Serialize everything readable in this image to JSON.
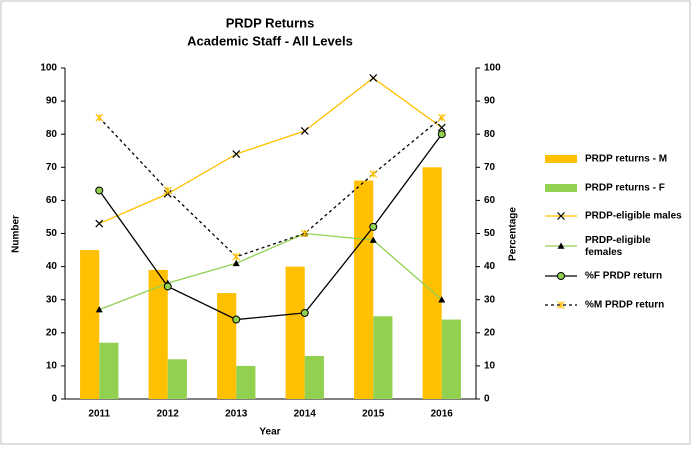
{
  "chart_data": {
    "type": "bar",
    "title": [
      "PRDP Returns",
      "Academic Staff - All Levels"
    ],
    "x_label": "Year",
    "y_label": "Number",
    "y2_label": "Percentage",
    "categories": [
      "2011",
      "2012",
      "2013",
      "2014",
      "2015",
      "2016"
    ],
    "ylim": [
      0,
      100
    ],
    "yticks": [
      0,
      10,
      20,
      30,
      40,
      50,
      60,
      70,
      80,
      90,
      100
    ],
    "y2lim": [
      0,
      100
    ],
    "y2ticks": [
      0,
      10,
      20,
      30,
      40,
      50,
      60,
      70,
      80,
      90,
      100
    ],
    "legend": "right",
    "series": [
      {
        "name": "PRDP returns - M",
        "type": "bar",
        "color": "#FFC000",
        "values": [
          45,
          39,
          32,
          40,
          66,
          70
        ]
      },
      {
        "name": "PRDP returns - F",
        "type": "bar",
        "color": "#92D050",
        "values": [
          17,
          12,
          10,
          13,
          25,
          24
        ]
      },
      {
        "name": "PRDP-eligible males",
        "type": "line",
        "color": "#FFC000",
        "marker": "x",
        "marker_color": "#000000",
        "values": [
          53,
          62,
          74,
          81,
          97,
          82
        ]
      },
      {
        "name": "PRDP-eligible females",
        "type": "line",
        "color": "#92D050",
        "marker": "triangle",
        "marker_color": "#000000",
        "values": [
          27,
          35,
          41,
          50,
          48,
          30
        ]
      },
      {
        "name": "%F PRDP return",
        "type": "line",
        "axis": "y2",
        "color": "#000000",
        "marker": "circle",
        "marker_color": "#92D050",
        "values": [
          63,
          34,
          24,
          26,
          52,
          80
        ]
      },
      {
        "name": "%M PRDP return",
        "type": "line",
        "axis": "y2",
        "color": "#000000",
        "dashed": true,
        "marker": "asterisk",
        "marker_color": "#FFC000",
        "values": [
          85,
          63,
          43,
          50,
          68,
          85
        ]
      }
    ]
  }
}
